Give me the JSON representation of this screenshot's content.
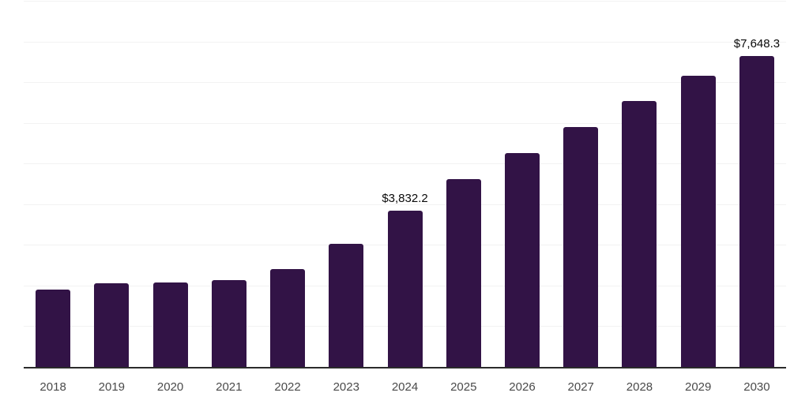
{
  "chart_data": {
    "type": "bar",
    "title": "",
    "xlabel": "",
    "ylabel": "",
    "categories": [
      "2018",
      "2019",
      "2020",
      "2021",
      "2022",
      "2023",
      "2024",
      "2025",
      "2026",
      "2027",
      "2028",
      "2029",
      "2030"
    ],
    "values": [
      1910,
      2060,
      2080,
      2130,
      2400,
      3030,
      3832.2,
      4610,
      5250,
      5890,
      6540,
      7150,
      7648.3
    ],
    "value_labels": [
      null,
      null,
      null,
      null,
      null,
      null,
      "$3,832.2",
      null,
      null,
      null,
      null,
      null,
      "$7,648.3"
    ],
    "ylim": [
      0,
      9000
    ],
    "grid_step": 1000,
    "grid": true,
    "legend": false,
    "legend_position": "none"
  },
  "style": {
    "bar_color": "#321346",
    "axis_color": "#2B2B2B",
    "gridline_color": "#F2F2F2",
    "tick_label_color": "#4A4A4A",
    "value_label_color": "#0A0A0A",
    "background": "#FFFFFF"
  }
}
